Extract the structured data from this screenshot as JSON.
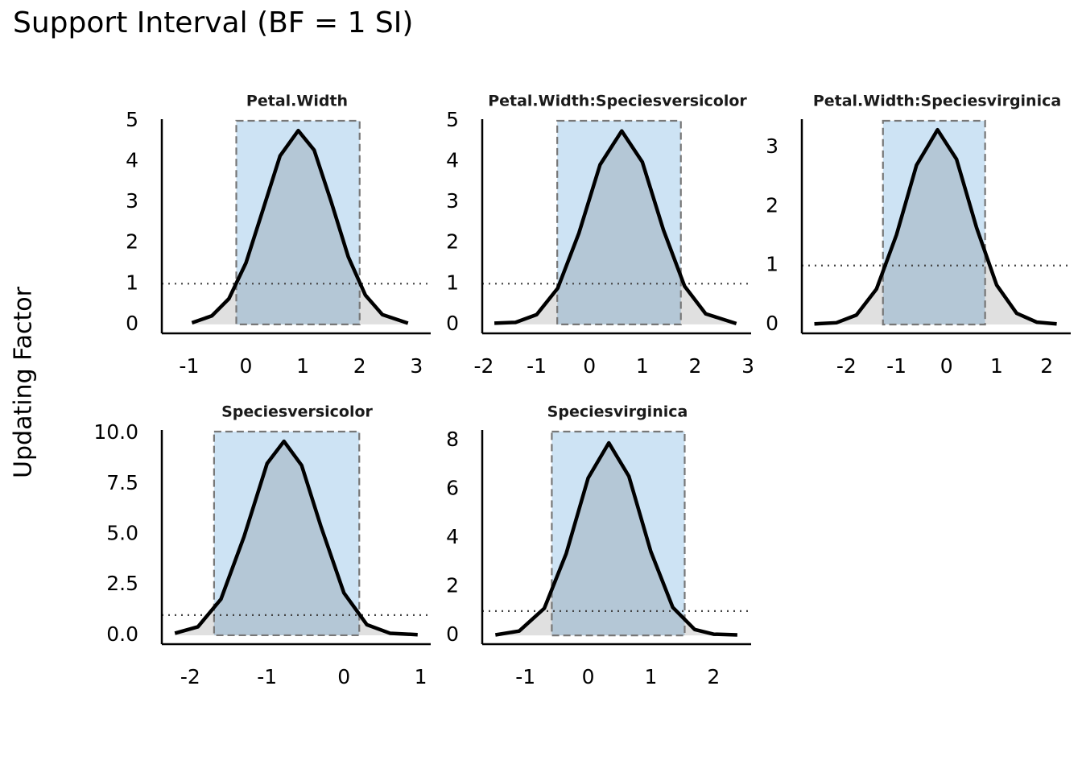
{
  "title": "Support Interval (BF = 1 SI)",
  "y_label": "Updating Factor",
  "chart_data": [
    {
      "type": "density",
      "title": "Petal.Width",
      "xlim": [
        -1.48,
        3.25
      ],
      "ylim": [
        -0.22,
        5.04
      ],
      "xticks": [
        -1,
        0,
        1,
        2,
        3
      ],
      "yticks": [
        0,
        1,
        2,
        3,
        4,
        5
      ],
      "threshold": 1,
      "interval": [
        -0.17,
        2.0
      ],
      "x": [
        -0.95,
        -0.6,
        -0.3,
        0,
        0.3,
        0.6,
        0.92,
        1.2,
        1.5,
        1.8,
        2.1,
        2.4,
        2.85
      ],
      "y": [
        0.04,
        0.21,
        0.63,
        1.51,
        2.82,
        4.14,
        4.76,
        4.28,
        3.01,
        1.66,
        0.72,
        0.24,
        0.03
      ]
    },
    {
      "type": "density",
      "title": "Petal.Width:Speciesversicolor",
      "xlim": [
        -2.03,
        3.06
      ],
      "ylim": [
        -0.22,
        5.04
      ],
      "xticks": [
        -2,
        -1,
        0,
        1,
        2,
        3
      ],
      "yticks": [
        0,
        1,
        2,
        3,
        4,
        5
      ],
      "threshold": 1,
      "interval": [
        -0.61,
        1.73
      ],
      "x": [
        -1.8,
        -1.4,
        -1,
        -0.6,
        -0.2,
        0.2,
        0.61,
        1,
        1.4,
        1.8,
        2.2,
        2.78
      ],
      "y": [
        0.03,
        0.05,
        0.24,
        0.89,
        2.24,
        3.92,
        4.75,
        3.99,
        2.32,
        0.94,
        0.26,
        0.02
      ]
    },
    {
      "type": "density",
      "title": "Petal.Width:Speciesvirginica",
      "xlim": [
        -2.89,
        2.48
      ],
      "ylim": [
        -0.15,
        3.48
      ],
      "xticks": [
        -2,
        -1,
        0,
        1,
        2
      ],
      "yticks": [
        0,
        1,
        2,
        3
      ],
      "threshold": 1,
      "interval": [
        -1.27,
        0.77
      ],
      "x": [
        -2.64,
        -2.2,
        -1.8,
        -1.4,
        -1,
        -0.6,
        -0.18,
        0.2,
        0.6,
        1,
        1.4,
        1.8,
        2.2
      ],
      "y": [
        0.01,
        0.03,
        0.16,
        0.6,
        1.52,
        2.7,
        3.3,
        2.8,
        1.64,
        0.67,
        0.19,
        0.04,
        0.01
      ]
    },
    {
      "type": "density",
      "title": "Speciesversicolor",
      "xlim": [
        -2.37,
        1.13
      ],
      "ylim": [
        -0.44,
        10.16
      ],
      "xticks": [
        -2,
        -1,
        0,
        1
      ],
      "yticks": [
        {
          "value": 0,
          "label": "0.0"
        },
        2.5,
        {
          "value": 5,
          "label": "5.0"
        },
        7.5,
        {
          "value": 10,
          "label": "10.0"
        }
      ],
      "threshold": 1,
      "interval": [
        -1.69,
        0.2
      ],
      "x": [
        -2.2,
        -1.9,
        -1.6,
        -1.3,
        -1.0,
        -0.78,
        -0.55,
        -0.3,
        0,
        0.3,
        0.6,
        0.96
      ],
      "y": [
        0.1,
        0.42,
        1.79,
        4.88,
        8.5,
        9.6,
        8.41,
        5.4,
        2.1,
        0.52,
        0.1,
        0.03
      ]
    },
    {
      "type": "density",
      "title": "Speciesvirginica",
      "xlim": [
        -1.69,
        2.6
      ],
      "ylim": [
        -0.36,
        8.43
      ],
      "xticks": [
        -1,
        0,
        1,
        2
      ],
      "yticks": [
        0,
        2,
        4,
        6,
        8
      ],
      "threshold": 1,
      "interval": [
        -0.58,
        1.54
      ],
      "x": [
        -1.48,
        -1.1,
        -0.7,
        -0.35,
        0,
        0.33,
        0.65,
        1,
        1.35,
        1.7,
        2.0,
        2.38
      ],
      "y": [
        0.02,
        0.18,
        1.11,
        3.36,
        6.46,
        7.9,
        6.53,
        3.44,
        1.15,
        0.24,
        0.05,
        0.02
      ]
    }
  ]
}
